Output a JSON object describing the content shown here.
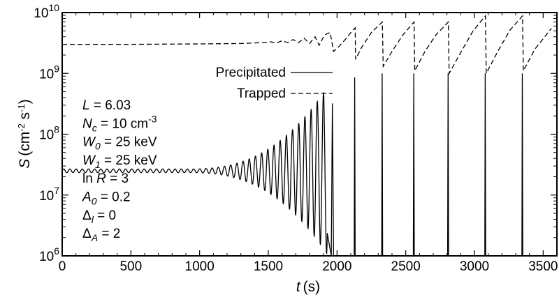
{
  "chart_data": {
    "type": "line",
    "xlabel_var": "t",
    "xlabel_unit": "(s)",
    "ylabel_var": "S",
    "ylabel_unit_base": "(cm",
    "ylabel_unit_exp1": "-2",
    "ylabel_unit_mid": " s",
    "ylabel_unit_exp2": "-1",
    "ylabel_unit_close": ")",
    "xlim": [
      0,
      3600
    ],
    "ylim": [
      1000000,
      10000000000
    ],
    "yscale": "log",
    "grid": false,
    "x_ticks": [
      0,
      500,
      1000,
      1500,
      2000,
      2500,
      3000,
      3500
    ],
    "x_tick_labels": [
      "0",
      "500",
      "1000",
      "1500",
      "2000",
      "2500",
      "3000",
      "3500"
    ],
    "y_ticks": [
      {
        "value": 1000000,
        "base": "10",
        "exp": "6"
      },
      {
        "value": 10000000,
        "base": "10",
        "exp": "7"
      },
      {
        "value": 100000000,
        "base": "10",
        "exp": "8"
      },
      {
        "value": 1000000000,
        "base": "10",
        "exp": "9"
      },
      {
        "value": 10000000000,
        "base": "10",
        "exp": "10"
      }
    ],
    "legend_position": "upper-center",
    "series": [
      {
        "name": "Precipitated",
        "style": "solid",
        "baseline": 25000000,
        "oscillation_period": 45,
        "oscillation_start_amp_decades": 0.03,
        "growth_start": 900,
        "pulse_times": [
          1970,
          2130,
          2330,
          2560,
          2810,
          3080,
          3350
        ],
        "pulse_peaks": [
          320000000,
          860000000,
          1000000000,
          1000000000,
          1000000000,
          1000000000,
          1000000000
        ]
      },
      {
        "name": "Trapped",
        "style": "dashed",
        "points": [
          [
            0,
            3000000000
          ],
          [
            500,
            3000000000
          ],
          [
            1000,
            3050000000
          ],
          [
            1300,
            3100000000
          ],
          [
            1450,
            3200000000
          ],
          [
            1520,
            3300000000
          ],
          [
            1560,
            3150000000
          ],
          [
            1600,
            3450000000
          ],
          [
            1640,
            3200000000
          ],
          [
            1680,
            3600000000
          ],
          [
            1720,
            3200000000
          ],
          [
            1760,
            3800000000
          ],
          [
            1800,
            3100000000
          ],
          [
            1840,
            4000000000
          ],
          [
            1870,
            2900000000
          ],
          [
            1910,
            4300000000
          ],
          [
            1950,
            4700000000
          ],
          [
            1975,
            2300000000
          ],
          [
            2010,
            2700000000
          ],
          [
            2060,
            3600000000
          ],
          [
            2110,
            5000000000
          ],
          [
            2132,
            5600000000
          ],
          [
            2135,
            1700000000
          ],
          [
            2180,
            2700000000
          ],
          [
            2250,
            4700000000
          ],
          [
            2330,
            7000000000
          ],
          [
            2336,
            1300000000
          ],
          [
            2400,
            2300000000
          ],
          [
            2480,
            4300000000
          ],
          [
            2560,
            7000000000
          ],
          [
            2566,
            1100000000
          ],
          [
            2640,
            2300000000
          ],
          [
            2720,
            4300000000
          ],
          [
            2810,
            7000000000
          ],
          [
            2816,
            1000000000
          ],
          [
            2900,
            2200000000
          ],
          [
            2990,
            5000000000
          ],
          [
            3080,
            8800000000
          ],
          [
            3086,
            1000000000
          ],
          [
            3170,
            2300000000
          ],
          [
            3260,
            5200000000
          ],
          [
            3350,
            8800000000
          ],
          [
            3356,
            1100000000
          ],
          [
            3440,
            2500000000
          ],
          [
            3560,
            5500000000
          ]
        ]
      }
    ],
    "legend": {
      "precipitated_label": "Precipitated",
      "trapped_label": "Trapped"
    },
    "parameters": [
      {
        "pre": "",
        "sym": "L",
        "sub": "",
        "post": " = 6.03",
        "sup": ""
      },
      {
        "pre": "",
        "sym": "N",
        "sub": "c",
        "post": " = 10 cm",
        "sup": "-3"
      },
      {
        "pre": "",
        "sym": "W",
        "sub": "0",
        "post": " = 25 keV",
        "sup": ""
      },
      {
        "pre": "",
        "sym": "W",
        "sub": "1",
        "post": " = 25 keV",
        "sup": ""
      },
      {
        "pre": "ln ",
        "sym": "R",
        "sub": "",
        "post": " = 3",
        "sup": ""
      },
      {
        "pre": "",
        "sym": "A",
        "sub": "0",
        "post": " = 0.2",
        "sup": ""
      },
      {
        "pre": "",
        "sym": "Δ",
        "sub": "l",
        "post": " = 0",
        "sup": ""
      },
      {
        "pre": "",
        "sym": "Δ",
        "sub": "A",
        "post": " = 2",
        "sup": ""
      }
    ],
    "colors": {
      "line": "#000000",
      "background": "#ffffff"
    }
  }
}
